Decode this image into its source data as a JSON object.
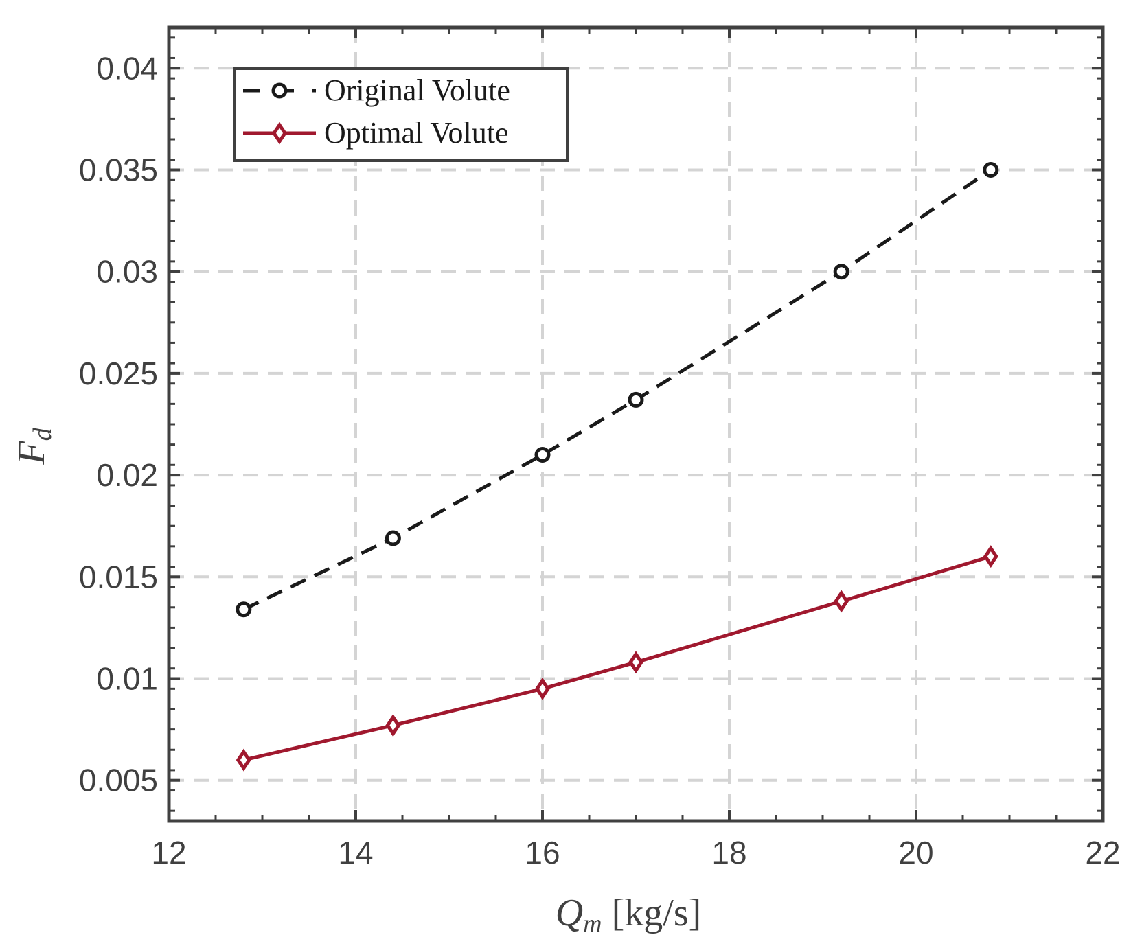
{
  "chart_data": {
    "type": "line",
    "title": "",
    "xlabel": {
      "main": "Q",
      "sub": "m",
      "unit": "[kg/s]"
    },
    "ylabel": {
      "main": "F",
      "sub": "d"
    },
    "xlim": [
      12,
      22
    ],
    "ylim": [
      0.003,
      0.042
    ],
    "x_ticks": [
      12,
      14,
      16,
      18,
      20,
      22
    ],
    "x_tick_labels": [
      "12",
      "14",
      "16",
      "18",
      "20",
      "22"
    ],
    "y_ticks": [
      0.005,
      0.01,
      0.015,
      0.02,
      0.025,
      0.03,
      0.035,
      0.04
    ],
    "y_tick_labels": [
      "0.005",
      "0.01",
      "0.015",
      "0.02",
      "0.025",
      "0.03",
      "0.035",
      "0.04"
    ],
    "grid": true,
    "legend_position": "top-left",
    "series": [
      {
        "name": "Original Volute",
        "color": "#1a1a1a",
        "line_style": "dashed",
        "marker": "circle",
        "x": [
          12.8,
          14.4,
          16.0,
          17.0,
          19.2,
          20.8
        ],
        "y": [
          0.0134,
          0.0169,
          0.021,
          0.0237,
          0.03,
          0.035
        ]
      },
      {
        "name": "Optimal Volute",
        "color": "#a0182e",
        "line_style": "solid",
        "marker": "diamond",
        "x": [
          12.8,
          14.4,
          16.0,
          17.0,
          19.2,
          20.8
        ],
        "y": [
          0.006,
          0.0077,
          0.0095,
          0.0108,
          0.0138,
          0.016
        ]
      }
    ]
  }
}
